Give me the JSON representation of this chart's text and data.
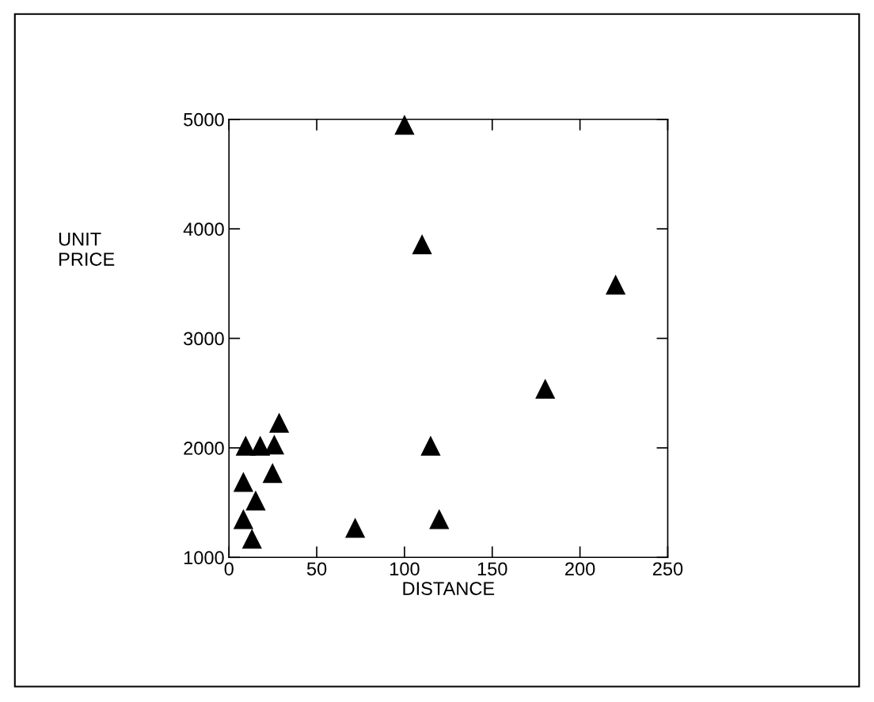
{
  "chart_data": {
    "type": "scatter",
    "xlabel": "DISTANCE",
    "ylabel": "UNIT\nPRICE",
    "x": [
      100,
      110,
      28.6,
      9.5,
      17.8,
      25.8,
      114.9,
      24.8,
      8.2,
      15.2,
      8.2,
      13.1,
      71.9,
      119.8,
      220.3,
      180.2
    ],
    "series": [
      {
        "color": "#000000",
        "values": [
          4950,
          3860,
          2230,
          2020,
          2020,
          2030,
          2020,
          1770,
          1690,
          1520,
          1350,
          1170,
          1270,
          1350,
          3490,
          2540
        ]
      }
    ],
    "marker": "triangle",
    "xlim": [
      0,
      250
    ],
    "ylim": [
      1000,
      5000
    ],
    "xticks": [
      0,
      50,
      100,
      150,
      200,
      250
    ],
    "yticks": [
      1000,
      2000,
      3000,
      4000,
      5000
    ],
    "grid": false,
    "legend": false
  }
}
